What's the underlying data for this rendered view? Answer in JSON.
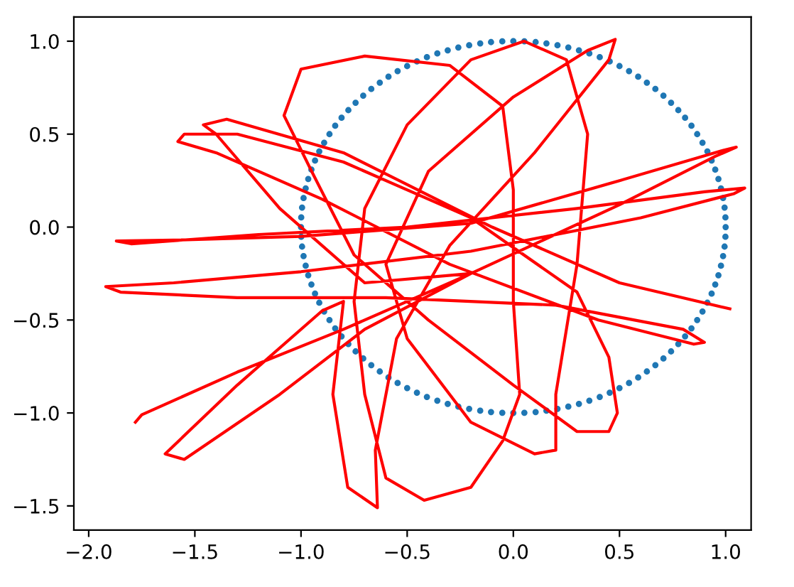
{
  "chart_data": {
    "type": "line",
    "xlim": [
      -2.07,
      1.12
    ],
    "ylim": [
      -1.63,
      1.13
    ],
    "xticks": [
      {
        "value": -2.0,
        "label": "−2.0"
      },
      {
        "value": -1.5,
        "label": "−1.5"
      },
      {
        "value": -1.0,
        "label": "−1.0"
      },
      {
        "value": -0.5,
        "label": "−0.5"
      },
      {
        "value": 0.0,
        "label": "0.0"
      },
      {
        "value": 0.5,
        "label": "0.5"
      },
      {
        "value": 1.0,
        "label": "1.0"
      }
    ],
    "yticks": [
      {
        "value": -1.5,
        "label": "−1.5"
      },
      {
        "value": -1.0,
        "label": "−1.0"
      },
      {
        "value": -0.5,
        "label": "−0.5"
      },
      {
        "value": 0.0,
        "label": "0.0"
      },
      {
        "value": 0.5,
        "label": "0.5"
      },
      {
        "value": 1.0,
        "label": "1.0"
      }
    ],
    "grid": false,
    "legend": false,
    "series": [
      {
        "type": "scatter",
        "color": "#1f77b4",
        "marker": "circle",
        "x": [
          1.0,
          0.999,
          0.995,
          0.988,
          0.978,
          0.966,
          0.951,
          0.934,
          0.914,
          0.891,
          0.866,
          0.839,
          0.809,
          0.777,
          0.743,
          0.707,
          0.669,
          0.629,
          0.588,
          0.545,
          0.5,
          0.454,
          0.407,
          0.358,
          0.309,
          0.259,
          0.208,
          0.156,
          0.105,
          0.052,
          0.0,
          -0.052,
          -0.105,
          -0.156,
          -0.208,
          -0.259,
          -0.309,
          -0.358,
          -0.407,
          -0.454,
          -0.5,
          -0.545,
          -0.588,
          -0.629,
          -0.669,
          -0.707,
          -0.743,
          -0.777,
          -0.809,
          -0.839,
          -0.866,
          -0.891,
          -0.914,
          -0.934,
          -0.951,
          -0.966,
          -0.978,
          -0.988,
          -0.995,
          -0.999,
          -1.0,
          -0.999,
          -0.995,
          -0.988,
          -0.978,
          -0.966,
          -0.951,
          -0.934,
          -0.914,
          -0.891,
          -0.866,
          -0.839,
          -0.809,
          -0.777,
          -0.743,
          -0.707,
          -0.669,
          -0.629,
          -0.588,
          -0.545,
          -0.5,
          -0.454,
          -0.407,
          -0.358,
          -0.309,
          -0.259,
          -0.208,
          -0.156,
          -0.105,
          -0.052,
          0.0,
          0.052,
          0.105,
          0.156,
          0.208,
          0.259,
          0.309,
          0.358,
          0.407,
          0.454,
          0.5,
          0.545,
          0.588,
          0.629,
          0.669,
          0.707,
          0.743,
          0.777,
          0.809,
          0.839,
          0.866,
          0.891,
          0.914,
          0.934,
          0.951,
          0.966,
          0.978,
          0.988,
          0.995,
          0.999
        ],
        "values": [
          0.0,
          0.052,
          0.105,
          0.156,
          0.208,
          0.259,
          0.309,
          0.358,
          0.407,
          0.454,
          0.5,
          0.545,
          0.588,
          0.629,
          0.669,
          0.707,
          0.743,
          0.777,
          0.809,
          0.839,
          0.866,
          0.891,
          0.914,
          0.934,
          0.951,
          0.966,
          0.978,
          0.988,
          0.995,
          0.999,
          1.0,
          0.999,
          0.995,
          0.988,
          0.978,
          0.966,
          0.951,
          0.934,
          0.914,
          0.891,
          0.866,
          0.839,
          0.809,
          0.777,
          0.743,
          0.707,
          0.669,
          0.629,
          0.588,
          0.545,
          0.5,
          0.454,
          0.407,
          0.358,
          0.309,
          0.259,
          0.208,
          0.156,
          0.105,
          0.052,
          0.0,
          -0.052,
          -0.105,
          -0.156,
          -0.208,
          -0.259,
          -0.309,
          -0.358,
          -0.407,
          -0.454,
          -0.5,
          -0.545,
          -0.588,
          -0.629,
          -0.669,
          -0.707,
          -0.743,
          -0.777,
          -0.809,
          -0.839,
          -0.866,
          -0.891,
          -0.914,
          -0.934,
          -0.951,
          -0.966,
          -0.978,
          -0.988,
          -0.995,
          -0.999,
          -1.0,
          -0.999,
          -0.995,
          -0.988,
          -0.978,
          -0.966,
          -0.951,
          -0.934,
          -0.914,
          -0.891,
          -0.866,
          -0.839,
          -0.809,
          -0.777,
          -0.743,
          -0.707,
          -0.669,
          -0.629,
          -0.588,
          -0.545,
          -0.5,
          -0.454,
          -0.407,
          -0.358,
          -0.309,
          -0.259,
          -0.208,
          -0.156,
          -0.105,
          -0.052
        ]
      },
      {
        "color": "#ff0000",
        "marker": "none",
        "line_style": "solid",
        "x": [
          -1.78,
          -1.75,
          -1.3,
          -0.8,
          -0.2,
          0.5,
          0.95,
          1.05,
          0.98,
          0.5,
          -0.2,
          -1.0,
          -1.6,
          -1.87,
          -1.8,
          -1.2,
          -0.5,
          0.3,
          0.9,
          1.09,
          1.04,
          0.6,
          -0.2,
          -1.0,
          -1.6,
          -1.92,
          -1.85,
          -1.3,
          -0.6,
          0.2,
          0.8,
          0.9,
          0.85,
          0.4,
          -0.3,
          -0.9,
          -1.4,
          -1.58,
          -1.55,
          -1.3,
          -0.8,
          -0.2,
          0.3,
          0.45,
          0.49,
          0.45,
          0.3,
          0.0,
          -0.4,
          -0.75,
          -0.95,
          -1.08,
          -1.0,
          -0.7,
          -0.3,
          -0.05,
          0.0,
          0.0,
          0.03,
          -0.05,
          -0.2,
          -0.42,
          -0.6,
          -0.7,
          -0.75,
          -0.7,
          -0.5,
          -0.2,
          0.05,
          0.25,
          0.35,
          0.3,
          0.2,
          0.2,
          0.1,
          -0.2,
          -0.5,
          -0.6,
          -0.4,
          0.0,
          0.35,
          0.48,
          0.45,
          0.1,
          -0.3,
          -0.55,
          -0.65,
          -0.64,
          -0.78,
          -0.85,
          -0.8,
          -0.9,
          -1.3,
          -1.64,
          -1.55,
          -1.1,
          -0.7,
          -0.2,
          -0.7,
          -1.1,
          -1.4,
          -1.46,
          -1.35,
          -0.8,
          -0.1,
          0.5,
          1.02
        ],
        "values": [
          -1.05,
          -1.01,
          -0.78,
          -0.55,
          -0.25,
          0.12,
          0.38,
          0.43,
          0.41,
          0.25,
          0.02,
          -0.05,
          -0.07,
          -0.075,
          -0.09,
          -0.04,
          0.0,
          0.1,
          0.19,
          0.21,
          0.18,
          0.05,
          -0.13,
          -0.24,
          -0.3,
          -0.32,
          -0.35,
          -0.38,
          -0.38,
          -0.42,
          -0.55,
          -0.62,
          -0.63,
          -0.5,
          -0.2,
          0.15,
          0.4,
          0.46,
          0.5,
          0.5,
          0.35,
          0.05,
          -0.35,
          -0.7,
          -1.0,
          -1.1,
          -1.1,
          -0.85,
          -0.5,
          -0.15,
          0.3,
          0.6,
          0.85,
          0.92,
          0.87,
          0.65,
          0.2,
          -0.4,
          -0.9,
          -1.15,
          -1.4,
          -1.47,
          -1.35,
          -0.9,
          -0.4,
          0.1,
          0.55,
          0.9,
          1.0,
          0.9,
          0.5,
          -0.2,
          -0.9,
          -1.2,
          -1.22,
          -1.05,
          -0.6,
          -0.2,
          0.3,
          0.7,
          0.95,
          1.01,
          0.9,
          0.4,
          -0.1,
          -0.6,
          -1.2,
          -1.51,
          -1.4,
          -0.9,
          -0.4,
          -0.45,
          -0.85,
          -1.22,
          -1.25,
          -0.9,
          -0.55,
          -0.25,
          -0.3,
          0.1,
          0.5,
          0.55,
          0.58,
          0.4,
          0.0,
          -0.3,
          -0.44
        ]
      }
    ]
  }
}
